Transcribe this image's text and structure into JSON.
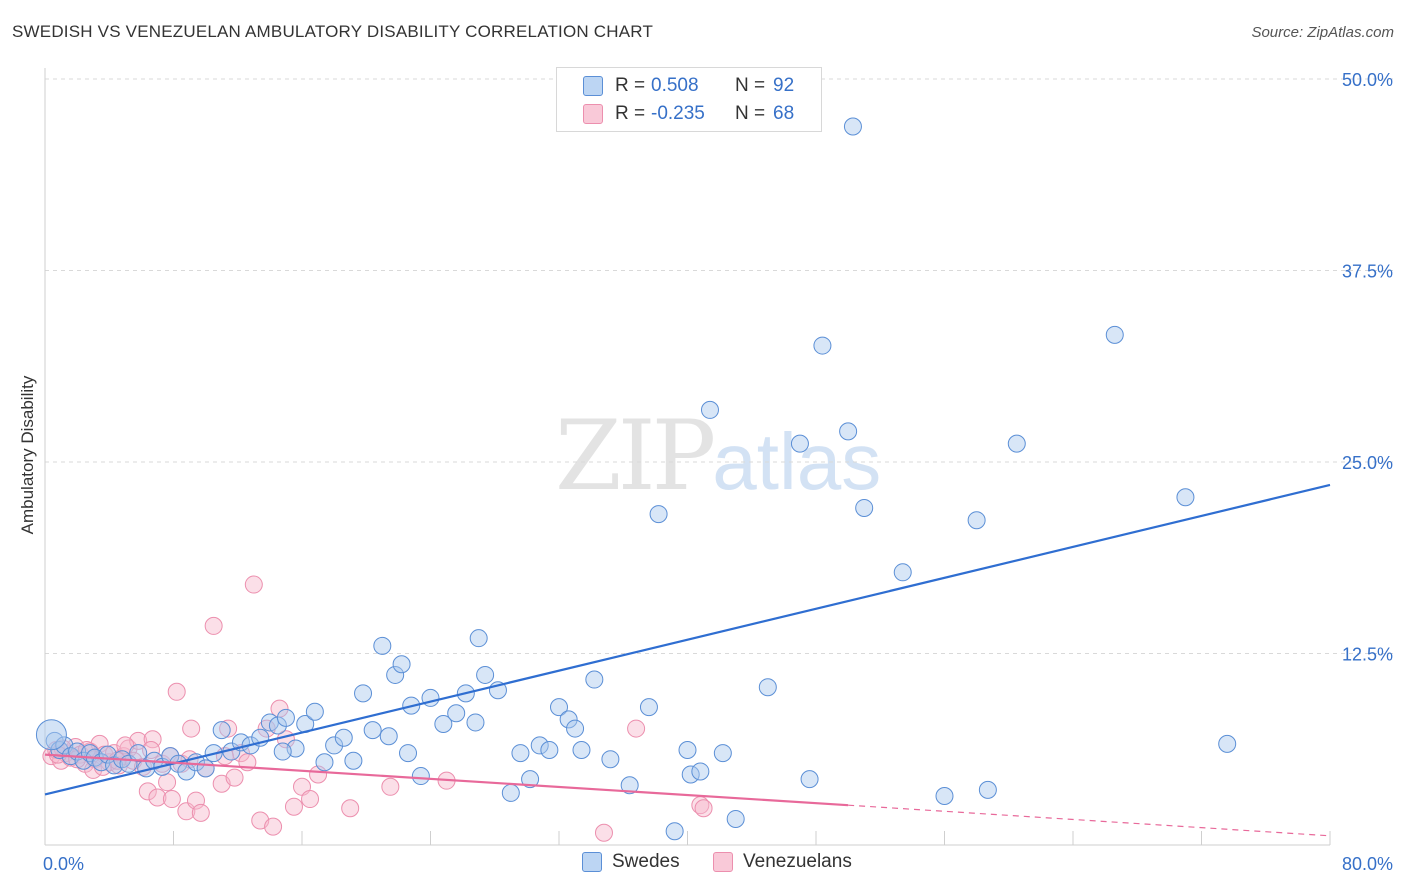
{
  "title": "SWEDISH VS VENEZUELAN AMBULATORY DISABILITY CORRELATION CHART",
  "source": "Source: ZipAtlas.com",
  "watermark": {
    "zip": "ZIP",
    "atlas": "atlas"
  },
  "legend": {
    "r_label": "R =",
    "n_label": "N =",
    "rows": [
      {
        "r": "0.508",
        "n": "92"
      },
      {
        "r": "-0.235",
        "n": "68"
      }
    ]
  },
  "colors": {
    "swedes_fill": "#a8c8ee",
    "swedes_stroke": "#5b8fd6",
    "swedes_line": "#2f6ed1",
    "venezuelans_fill": "#f7b8cc",
    "venezuelans_stroke": "#ec8fae",
    "venezuelans_line": "#e8699a",
    "grid": "#d9d9d9",
    "tick_label": "#3670c8"
  },
  "chart_data": {
    "type": "scatter",
    "title": "SWEDISH VS VENEZUELAN AMBULATORY DISABILITY CORRELATION CHART",
    "xlabel": "",
    "ylabel": "Ambulatory Disability",
    "xlim": [
      0,
      80
    ],
    "ylim": [
      0,
      50
    ],
    "x_tick_labels": [
      "0.0%",
      "80.0%"
    ],
    "y_tick_labels": [
      "12.5%",
      "25.0%",
      "37.5%",
      "50.0%"
    ],
    "y_ticks": [
      12.5,
      25.0,
      37.5,
      50.0
    ],
    "grid": true,
    "series": [
      {
        "name": "Swedes",
        "r": 0.508,
        "n": 92,
        "trend": {
          "x0": 0,
          "y0": 3.3,
          "x1": 80,
          "y1": 23.5
        },
        "points": [
          [
            0.6,
            6.8
          ],
          [
            0.9,
            6.2
          ],
          [
            1.2,
            6.5
          ],
          [
            1.6,
            5.8
          ],
          [
            2.0,
            6.1
          ],
          [
            2.4,
            5.5
          ],
          [
            2.8,
            6.0
          ],
          [
            3.1,
            5.7
          ],
          [
            3.5,
            5.4
          ],
          [
            3.9,
            5.9
          ],
          [
            4.3,
            5.2
          ],
          [
            4.8,
            5.6
          ],
          [
            5.2,
            5.3
          ],
          [
            5.8,
            6.0
          ],
          [
            6.3,
            5.0
          ],
          [
            6.8,
            5.5
          ],
          [
            7.3,
            5.1
          ],
          [
            7.8,
            5.8
          ],
          [
            8.3,
            5.3
          ],
          [
            8.8,
            4.8
          ],
          [
            9.4,
            5.4
          ],
          [
            10.0,
            5.0
          ],
          [
            10.5,
            6.0
          ],
          [
            11.0,
            7.5
          ],
          [
            11.6,
            6.1
          ],
          [
            12.2,
            6.7
          ],
          [
            12.8,
            6.5
          ],
          [
            13.4,
            7.0
          ],
          [
            14.0,
            8.0
          ],
          [
            14.5,
            7.8
          ],
          [
            15.0,
            8.3
          ],
          [
            15.6,
            6.3
          ],
          [
            16.2,
            7.9
          ],
          [
            16.8,
            8.7
          ],
          [
            17.4,
            5.4
          ],
          [
            18.0,
            6.5
          ],
          [
            18.6,
            7.0
          ],
          [
            19.2,
            5.5
          ],
          [
            19.8,
            9.9
          ],
          [
            20.4,
            7.5
          ],
          [
            21.0,
            13.0
          ],
          [
            21.4,
            7.1
          ],
          [
            21.8,
            11.1
          ],
          [
            22.2,
            11.8
          ],
          [
            22.8,
            9.1
          ],
          [
            23.4,
            4.5
          ],
          [
            24.0,
            9.6
          ],
          [
            24.8,
            7.9
          ],
          [
            25.6,
            8.6
          ],
          [
            26.2,
            9.9
          ],
          [
            27.0,
            13.5
          ],
          [
            27.4,
            11.1
          ],
          [
            28.2,
            10.1
          ],
          [
            29.0,
            3.4
          ],
          [
            29.6,
            6.0
          ],
          [
            30.2,
            4.3
          ],
          [
            30.8,
            6.5
          ],
          [
            31.4,
            6.2
          ],
          [
            32.0,
            9.0
          ],
          [
            32.6,
            8.2
          ],
          [
            33.4,
            6.2
          ],
          [
            34.2,
            10.8
          ],
          [
            35.2,
            5.6
          ],
          [
            36.4,
            3.9
          ],
          [
            37.6,
            9.0
          ],
          [
            38.2,
            21.6
          ],
          [
            39.2,
            0.9
          ],
          [
            40.2,
            4.6
          ],
          [
            40.8,
            4.8
          ],
          [
            41.4,
            28.4
          ],
          [
            42.2,
            6.0
          ],
          [
            43.0,
            1.7
          ],
          [
            45.0,
            10.3
          ],
          [
            47.0,
            26.2
          ],
          [
            47.6,
            4.3
          ],
          [
            48.4,
            32.6
          ],
          [
            50.0,
            27.0
          ],
          [
            50.3,
            46.9
          ],
          [
            51.0,
            22.0
          ],
          [
            53.4,
            17.8
          ],
          [
            56.0,
            3.2
          ],
          [
            58.0,
            21.2
          ],
          [
            58.7,
            3.6
          ],
          [
            60.5,
            26.2
          ],
          [
            66.6,
            33.3
          ],
          [
            71.0,
            22.7
          ],
          [
            73.6,
            6.6
          ],
          [
            40.0,
            6.2
          ],
          [
            26.8,
            8.0
          ],
          [
            33.0,
            7.6
          ],
          [
            14.8,
            6.1
          ],
          [
            22.6,
            6.0
          ]
        ]
      },
      {
        "name": "Venezuelans",
        "r": -0.235,
        "n": 68,
        "trend": {
          "x0": 0,
          "y0": 5.9,
          "x1": 50,
          "y1": 2.6
        },
        "trend_dashed": {
          "x0": 50,
          "y0": 2.6,
          "x1": 80,
          "y1": 0.6
        },
        "points": [
          [
            0.4,
            5.8
          ],
          [
            0.7,
            6.2
          ],
          [
            1.0,
            5.5
          ],
          [
            1.3,
            6.0
          ],
          [
            1.6,
            5.7
          ],
          [
            1.9,
            6.4
          ],
          [
            2.2,
            5.9
          ],
          [
            2.5,
            5.3
          ],
          [
            2.8,
            6.1
          ],
          [
            3.1,
            5.6
          ],
          [
            3.4,
            6.6
          ],
          [
            3.7,
            5.9
          ],
          [
            4.0,
            5.4
          ],
          [
            4.3,
            6.0
          ],
          [
            4.6,
            5.2
          ],
          [
            4.9,
            5.8
          ],
          [
            5.2,
            6.3
          ],
          [
            5.5,
            5.5
          ],
          [
            5.8,
            6.8
          ],
          [
            6.1,
            5.1
          ],
          [
            6.4,
            3.5
          ],
          [
            6.7,
            6.9
          ],
          [
            7.0,
            3.1
          ],
          [
            7.3,
            5.3
          ],
          [
            7.6,
            4.1
          ],
          [
            7.9,
            3.0
          ],
          [
            8.2,
            10.0
          ],
          [
            8.5,
            5.3
          ],
          [
            8.8,
            2.2
          ],
          [
            9.1,
            7.6
          ],
          [
            9.4,
            2.9
          ],
          [
            9.7,
            2.1
          ],
          [
            10.0,
            5.0
          ],
          [
            10.5,
            14.3
          ],
          [
            11.0,
            4.0
          ],
          [
            11.4,
            7.6
          ],
          [
            11.8,
            4.4
          ],
          [
            12.2,
            6.0
          ],
          [
            12.6,
            5.4
          ],
          [
            13.0,
            17.0
          ],
          [
            13.4,
            1.6
          ],
          [
            13.8,
            7.6
          ],
          [
            14.2,
            1.2
          ],
          [
            14.6,
            8.9
          ],
          [
            15.0,
            6.9
          ],
          [
            15.5,
            2.5
          ],
          [
            16.0,
            3.8
          ],
          [
            16.5,
            3.0
          ],
          [
            17.0,
            4.6
          ],
          [
            19.0,
            2.4
          ],
          [
            21.5,
            3.8
          ],
          [
            25.0,
            4.2
          ],
          [
            34.8,
            0.8
          ],
          [
            36.8,
            7.6
          ],
          [
            40.8,
            2.6
          ],
          [
            41.0,
            2.4
          ],
          [
            3.0,
            4.9
          ],
          [
            5.0,
            6.5
          ],
          [
            2.0,
            5.6
          ],
          [
            1.1,
            6.3
          ],
          [
            6.6,
            6.2
          ],
          [
            4.5,
            5.5
          ],
          [
            3.6,
            5.1
          ],
          [
            7.8,
            5.8
          ],
          [
            9.0,
            5.6
          ],
          [
            11.2,
            5.8
          ],
          [
            0.8,
            5.9
          ],
          [
            2.6,
            6.2
          ]
        ]
      }
    ]
  },
  "bottom_legend": [
    "Swedes",
    "Venezuelans"
  ]
}
